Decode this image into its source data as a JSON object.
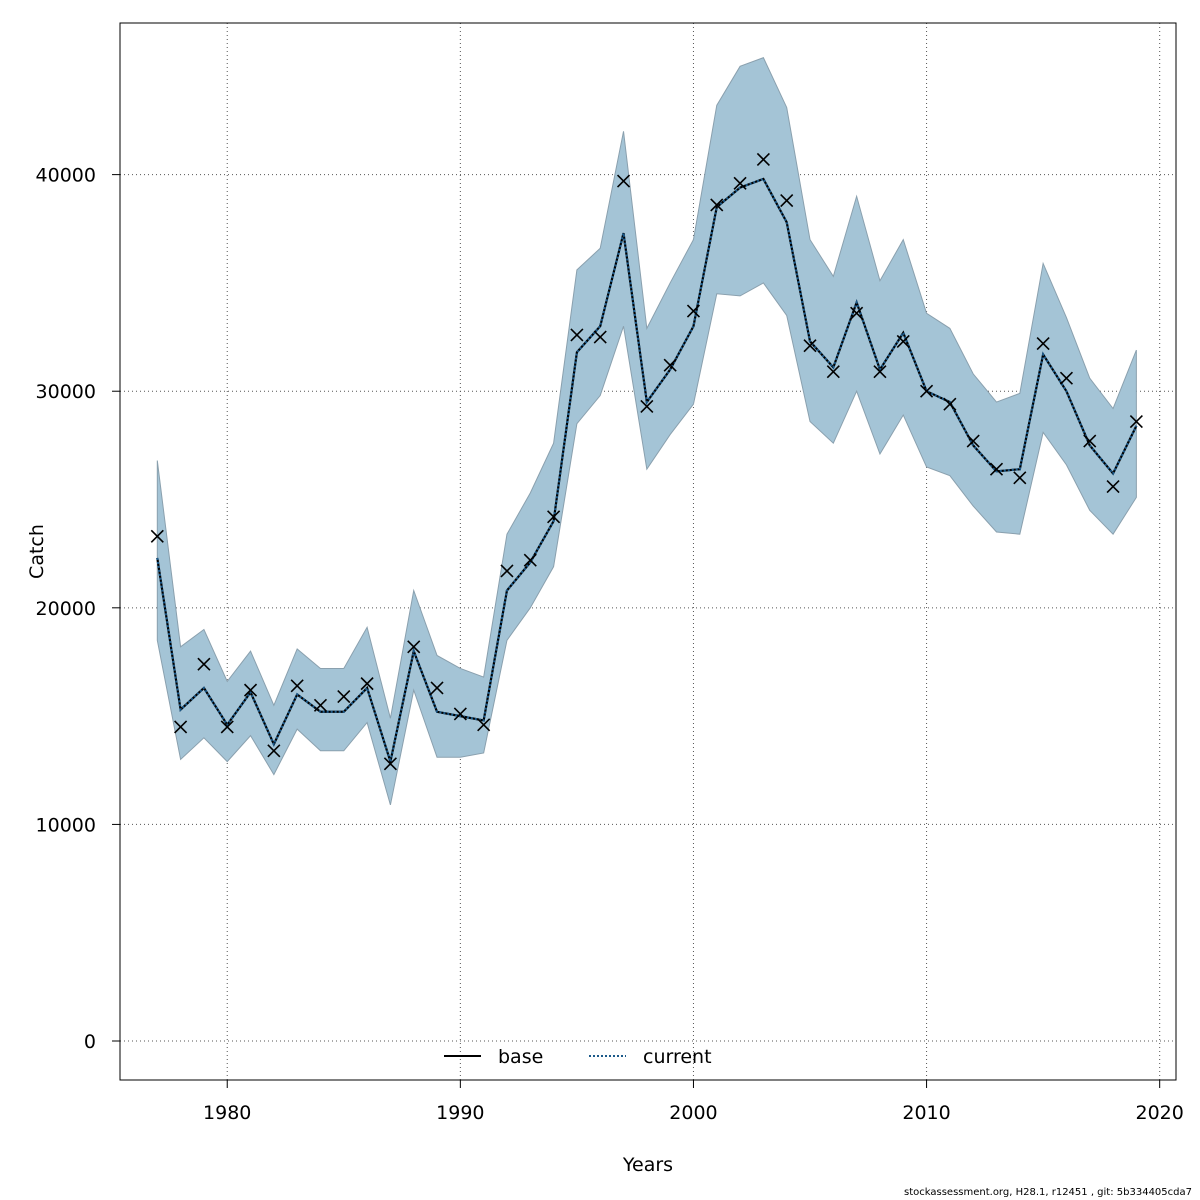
{
  "chart_data": {
    "type": "line",
    "title": "",
    "xlabel": "Years",
    "ylabel": "Catch",
    "xlim": [
      1975.4,
      2020.7
    ],
    "ylim": [
      -1800,
      47000
    ],
    "xticks": [
      1980,
      1990,
      2000,
      2010,
      2020
    ],
    "yticks": [
      0,
      10000,
      20000,
      30000,
      40000
    ],
    "grid": true,
    "legend_position": "bottom-center",
    "colors": {
      "band": "#a4c4d6",
      "band_edge": "#8aa0ae",
      "current": "#1c5a8a",
      "base": "#000000",
      "observed": "#000000"
    },
    "x": [
      1977,
      1978,
      1979,
      1980,
      1981,
      1982,
      1983,
      1984,
      1985,
      1986,
      1987,
      1988,
      1989,
      1990,
      1991,
      1992,
      1993,
      1994,
      1995,
      1996,
      1997,
      1998,
      1999,
      2000,
      2001,
      2002,
      2003,
      2004,
      2005,
      2006,
      2007,
      2008,
      2009,
      2010,
      2011,
      2012,
      2013,
      2014,
      2015,
      2016,
      2017,
      2018,
      2019
    ],
    "series": [
      {
        "name": "base",
        "style": "solid",
        "values": [
          22300,
          15300,
          16300,
          14600,
          16100,
          13700,
          16000,
          15200,
          15200,
          16300,
          12900,
          18000,
          15200,
          15000,
          14800,
          20800,
          22100,
          24000,
          31800,
          33000,
          37300,
          29500,
          31000,
          33000,
          38500,
          39400,
          39800,
          37800,
          32300,
          31100,
          34100,
          31000,
          32700,
          30000,
          29500,
          27500,
          26300,
          26400,
          31700,
          30000,
          27500,
          26200,
          28400
        ]
      },
      {
        "name": "current",
        "style": "dotted",
        "values": [
          22300,
          15300,
          16300,
          14600,
          16100,
          13700,
          16000,
          15200,
          15200,
          16300,
          12900,
          18000,
          15200,
          15000,
          14800,
          20800,
          22100,
          24000,
          31800,
          33000,
          37300,
          29500,
          31000,
          33000,
          38500,
          39400,
          39800,
          37800,
          32300,
          31100,
          34100,
          31000,
          32700,
          30000,
          29500,
          27500,
          26300,
          26400,
          31700,
          30000,
          27500,
          26200,
          28400
        ]
      }
    ],
    "band": {
      "lower": [
        18500,
        13000,
        14000,
        12900,
        14100,
        12300,
        14400,
        13400,
        13400,
        14700,
        10900,
        16200,
        13100,
        13100,
        13300,
        18500,
        20000,
        21900,
        28500,
        29800,
        33000,
        26400,
        28000,
        29400,
        34500,
        34400,
        35000,
        33500,
        28600,
        27600,
        30000,
        27100,
        28900,
        26500,
        26100,
        24700,
        23500,
        23400,
        28100,
        26600,
        24500,
        23400,
        25100
      ],
      "upper": [
        26800,
        18200,
        19000,
        16600,
        18000,
        15500,
        18100,
        17200,
        17200,
        19100,
        14900,
        20800,
        17800,
        17200,
        16800,
        23400,
        25300,
        27600,
        35600,
        36600,
        42000,
        32900,
        35000,
        37000,
        43200,
        45000,
        45400,
        43100,
        37000,
        35300,
        39000,
        35100,
        37000,
        33600,
        32900,
        30800,
        29500,
        29900,
        35900,
        33400,
        30600,
        29200,
        31900
      ]
    },
    "observed": {
      "name": "observed",
      "marker": "x",
      "values": [
        23300,
        14500,
        17400,
        14500,
        16200,
        13400,
        16400,
        15500,
        15900,
        16500,
        12800,
        18200,
        16300,
        15100,
        14600,
        21700,
        22200,
        24200,
        32600,
        32500,
        39700,
        29300,
        31200,
        33700,
        38600,
        39600,
        40700,
        38800,
        32100,
        30900,
        33600,
        30900,
        32300,
        30000,
        29400,
        27700,
        26400,
        26000,
        32200,
        30600,
        27700,
        25600,
        28600
      ]
    },
    "legend": [
      "base",
      "current"
    ]
  },
  "footer_text": "stockassessment.org, H28.1, r12451 , git: 5b334405cda7"
}
